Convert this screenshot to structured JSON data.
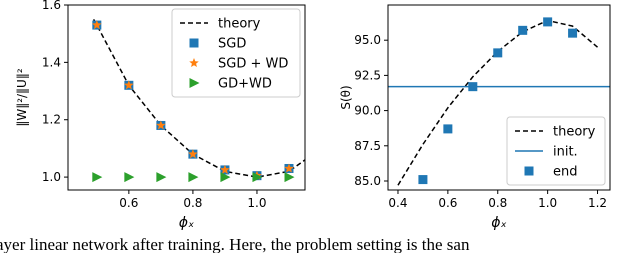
{
  "chart_data": [
    {
      "type": "line",
      "ylabel": "‖W‖²/‖U‖²",
      "xlabel": "ϕₓ",
      "xlim": [
        0.41,
        1.15
      ],
      "ylim": [
        0.955,
        1.6
      ],
      "xticks": [
        0.6,
        0.8,
        {
          "value": 1,
          "label": "1.0"
        }
      ],
      "yticks": [
        {
          "value": 1,
          "label": "1.0"
        },
        1.2,
        1.4,
        1.6
      ],
      "legend": "upper right",
      "series": [
        {
          "name": "theory",
          "color": "#000000",
          "linestyle": "dashed",
          "x": [
            0.49,
            0.5,
            0.6,
            0.7,
            0.8,
            0.9,
            1.0,
            1.1,
            1.15
          ],
          "values": [
            1.55,
            1.53,
            1.32,
            1.18,
            1.08,
            1.02,
            1.0,
            1.02,
            1.06
          ]
        },
        {
          "name": "SGD",
          "color": "#1f77b4",
          "marker": "square",
          "x": [
            0.5,
            0.6,
            0.7,
            0.8,
            0.9,
            1.0,
            1.1
          ],
          "values": [
            1.53,
            1.32,
            1.18,
            1.08,
            1.025,
            1.005,
            1.03
          ]
        },
        {
          "name": "SGD + WD",
          "color": "#ff7f0e",
          "marker": "star",
          "x": [
            0.5,
            0.6,
            0.7,
            0.8,
            0.9,
            1.0,
            1.1
          ],
          "values": [
            1.53,
            1.32,
            1.18,
            1.08,
            1.025,
            1.005,
            1.03
          ]
        },
        {
          "name": "GD+WD",
          "color": "#2ca02c",
          "marker": "triangle",
          "x": [
            0.5,
            0.6,
            0.7,
            0.8,
            0.9,
            1.0,
            1.1
          ],
          "values": [
            1.0,
            1.0,
            1.0,
            1.0,
            1.0,
            1.0,
            1.0
          ]
        }
      ]
    },
    {
      "type": "line",
      "ylabel": "S(θ)",
      "xlabel": "ϕₓ",
      "xlim": [
        0.36,
        1.25
      ],
      "ylim": [
        84.36,
        97.5
      ],
      "xticks": [
        0.4,
        0.6,
        0.8,
        {
          "value": 1,
          "label": "1.0"
        },
        1.2
      ],
      "yticks": [
        {
          "value": 85,
          "label": "85.0"
        },
        87.5,
        {
          "value": 90,
          "label": "90.0"
        },
        92.5,
        {
          "value": 95,
          "label": "95.0"
        }
      ],
      "legend": "lower right",
      "series": [
        {
          "name": "theory",
          "color": "#000000",
          "linestyle": "dashed",
          "x": [
            0.4,
            0.5,
            0.6,
            0.7,
            0.8,
            0.9,
            1.0,
            1.1,
            1.2
          ],
          "values": [
            84.7,
            87.6,
            90.2,
            92.4,
            94.2,
            95.6,
            96.4,
            96.0,
            94.5
          ]
        },
        {
          "name": "init.",
          "color": "#1f77b4",
          "kind": "hline",
          "values": [
            91.7
          ]
        },
        {
          "name": "end",
          "color": "#1f77b4",
          "marker": "square",
          "x": [
            0.5,
            0.6,
            0.7,
            0.8,
            0.9,
            1.0,
            1.1
          ],
          "values": [
            85.1,
            88.7,
            91.7,
            94.1,
            95.7,
            96.3,
            95.5
          ]
        }
      ]
    }
  ],
  "caption": "ayer linear network after training. Here, the problem setting is the san"
}
